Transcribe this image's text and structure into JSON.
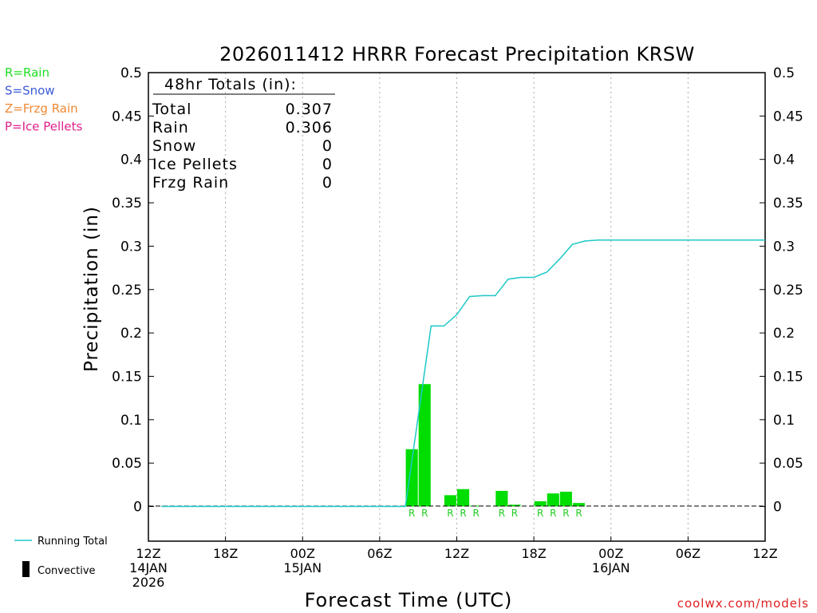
{
  "chart_data": {
    "type": "bar",
    "title": "2026011412 HRRR Forecast Precipitation KRSW",
    "xlabel": "Forecast Time (UTC)",
    "ylabel": "Precipitation (in)",
    "ylim": [
      -0.04,
      0.5
    ],
    "x_range_hours": [
      0,
      48
    ],
    "grid": "vertical dotted",
    "y_ticks": [
      {
        "v": 0,
        "label": "0"
      },
      {
        "v": 0.05,
        "label": "0.05"
      },
      {
        "v": 0.1,
        "label": "0.1"
      },
      {
        "v": 0.15,
        "label": "0.15"
      },
      {
        "v": 0.2,
        "label": "0.2"
      },
      {
        "v": 0.25,
        "label": "0.25"
      },
      {
        "v": 0.3,
        "label": "0.3"
      },
      {
        "v": 0.35,
        "label": "0.35"
      },
      {
        "v": 0.4,
        "label": "0.4"
      },
      {
        "v": 0.45,
        "label": "0.45"
      },
      {
        "v": 0.5,
        "label": "0.5"
      }
    ],
    "x_ticks": [
      {
        "h": 0,
        "lines": [
          "12Z",
          "14JAN",
          "2026"
        ]
      },
      {
        "h": 6,
        "lines": [
          "18Z"
        ]
      },
      {
        "h": 12,
        "lines": [
          "00Z",
          "15JAN"
        ]
      },
      {
        "h": 18,
        "lines": [
          "06Z"
        ]
      },
      {
        "h": 24,
        "lines": [
          "12Z"
        ]
      },
      {
        "h": 30,
        "lines": [
          "18Z"
        ]
      },
      {
        "h": 36,
        "lines": [
          "00Z",
          "16JAN"
        ]
      },
      {
        "h": 42,
        "lines": [
          "06Z"
        ]
      },
      {
        "h": 48,
        "lines": [
          "12Z"
        ]
      }
    ],
    "bars": [
      {
        "h": 21,
        "value": 0.066,
        "type": "R"
      },
      {
        "h": 22,
        "value": 0.141,
        "type": "R"
      },
      {
        "h": 24,
        "value": 0.013,
        "type": "R"
      },
      {
        "h": 25,
        "value": 0.02,
        "type": "R"
      },
      {
        "h": 26,
        "value": 0.001,
        "type": "R"
      },
      {
        "h": 28,
        "value": 0.018,
        "type": "R"
      },
      {
        "h": 29,
        "value": 0.002,
        "type": "R"
      },
      {
        "h": 31,
        "value": 0.006,
        "type": "R"
      },
      {
        "h": 32,
        "value": 0.015,
        "type": "R"
      },
      {
        "h": 33,
        "value": 0.017,
        "type": "R"
      },
      {
        "h": 34,
        "value": 0.004,
        "type": "R"
      }
    ],
    "running_total": [
      [
        1,
        0
      ],
      [
        20,
        0
      ],
      [
        22,
        0.208
      ],
      [
        23,
        0.208
      ],
      [
        24,
        0.221
      ],
      [
        25,
        0.242
      ],
      [
        26,
        0.243
      ],
      [
        27,
        0.243
      ],
      [
        28,
        0.262
      ],
      [
        29,
        0.264
      ],
      [
        30,
        0.264
      ],
      [
        31,
        0.27
      ],
      [
        32,
        0.285
      ],
      [
        33,
        0.302
      ],
      [
        34,
        0.306
      ],
      [
        35,
        0.307
      ],
      [
        48,
        0.307
      ]
    ],
    "series": [
      {
        "name": "Running Total",
        "color": "#1ec8c8"
      },
      {
        "name": "Convective",
        "color": "#000000"
      }
    ]
  },
  "totals_box": {
    "title": "48hr Totals (in):",
    "rows": [
      {
        "label": "Total",
        "value": "0.307"
      },
      {
        "label": "Rain",
        "value": "0.306"
      },
      {
        "label": "Snow",
        "value": "0"
      },
      {
        "label": "Ice Pellets",
        "value": "0"
      },
      {
        "label": "Frzg Rain",
        "value": "0"
      }
    ]
  },
  "type_legend": [
    {
      "text": "R=Rain",
      "color": "#22dd22"
    },
    {
      "text": "S=Snow",
      "color": "#3b5bdb"
    },
    {
      "text": "Z=Frzg Rain",
      "color": "#ee8833"
    },
    {
      "text": "P=Ice Pellets",
      "color": "#e0208a"
    }
  ],
  "colors": {
    "rain": "#00dd00",
    "running_total": "#1ec8c8",
    "text": "#000000",
    "grid": "#aaaaaa",
    "credit": "#e02020"
  },
  "credit": "coolwx.com/models"
}
